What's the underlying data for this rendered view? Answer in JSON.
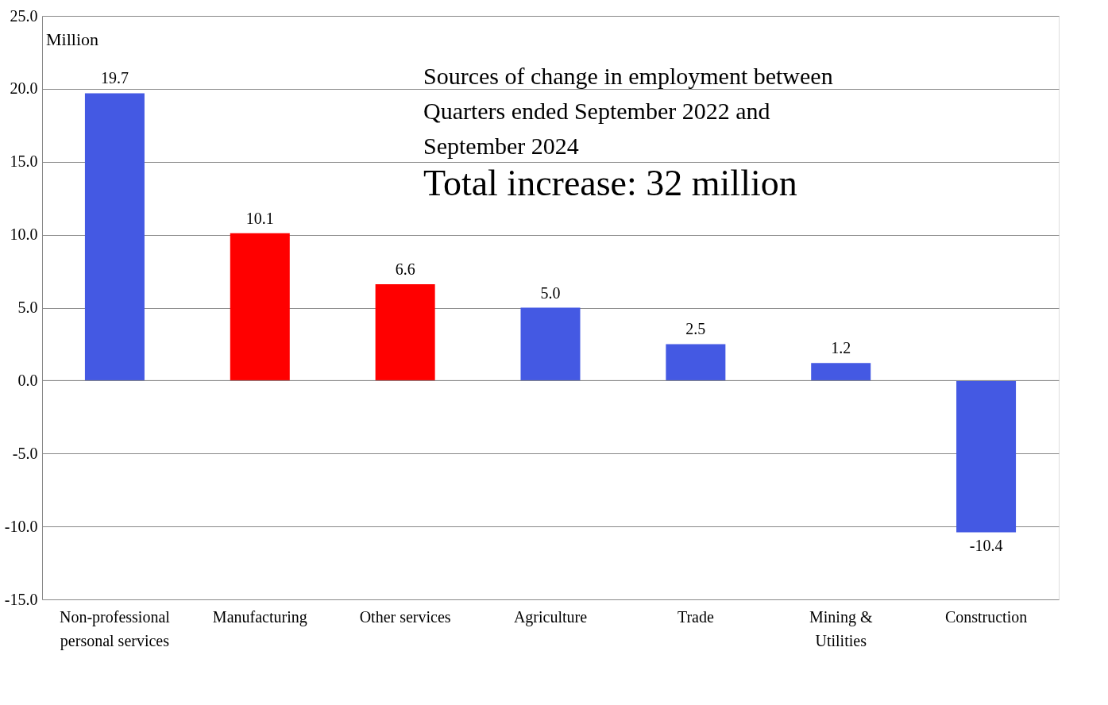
{
  "chart_data": {
    "type": "bar",
    "title": "Sources of change in employment between Quarters ended September 2022 and September 2024",
    "annotations": [
      "Total increase: 32 million"
    ],
    "ylabel": "Million",
    "categories": [
      "Non-professional personal services",
      "Manufacturing",
      "Other services",
      "Agriculture",
      "Trade",
      "Mining & Utilities",
      "Construction"
    ],
    "values": [
      19.7,
      10.1,
      6.6,
      5.0,
      2.5,
      1.2,
      -10.4
    ],
    "colors": [
      "#4459e3",
      "#ff0000",
      "#ff0000",
      "#4459e3",
      "#4459e3",
      "#4459e3",
      "#4459e3"
    ],
    "ylim": [
      -15,
      25
    ],
    "yticks": [
      {
        "value": -15,
        "label": "-15.0"
      },
      {
        "value": -10,
        "label": "-10.0"
      },
      {
        "value": -5,
        "label": "-5.0"
      },
      {
        "value": 0,
        "label": "0.0"
      },
      {
        "value": 5,
        "label": "5.0"
      },
      {
        "value": 10,
        "label": "10.0"
      },
      {
        "value": 15,
        "label": "15.0"
      },
      {
        "value": 20,
        "label": "20.0"
      },
      {
        "value": 25,
        "label": "25.0"
      }
    ],
    "grid": "y",
    "value_labels": [
      "19.7",
      "10.1",
      "6.6",
      "5.0",
      "2.5",
      "1.2",
      "-10.4"
    ]
  }
}
